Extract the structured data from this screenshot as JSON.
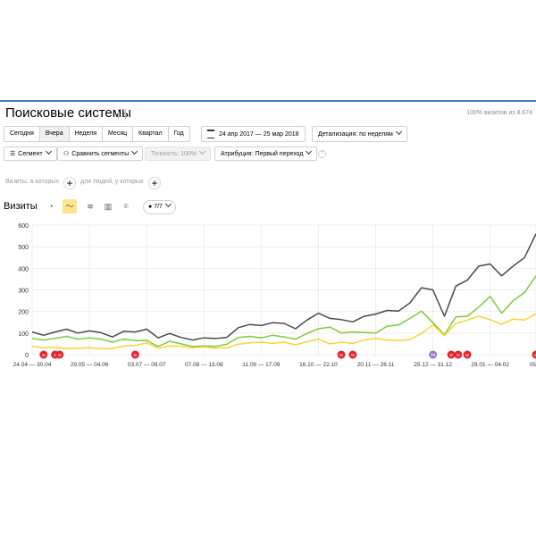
{
  "header": {
    "title": "Поисковые системы",
    "visits_note": "100% визитов из 8.674"
  },
  "period_tabs": [
    "Сегодня",
    "Вчера",
    "Неделя",
    "Месяц",
    "Квартал",
    "Год"
  ],
  "date_range": "24 апр 2017 — 25 мар 2018",
  "detail": "Детализация: по неделям",
  "toolbar": {
    "segment": "Сегмент",
    "compare": "Сравнить сегменты",
    "accuracy": "Точность: 100%",
    "attribution": "Атрибуция: Первый переход"
  },
  "conditions": {
    "visits_where": "Визиты, в которых",
    "for_people": "для людей, у которых"
  },
  "chart_header": {
    "title": "Визиты",
    "series_count": "7/7",
    "icons": [
      "pie-icon",
      "line-icon",
      "stacked-area-icon",
      "bar-icon",
      "map-icon"
    ]
  },
  "colors": {
    "series_dark": "#4a4a4a",
    "series_green": "#7ccd3a",
    "series_yellow": "#fcd233",
    "marker_red": "#e8222a",
    "marker_purple": "#8e7cc3",
    "grid": "#eeeeee",
    "accent_line": "#3d7fc4",
    "active_icon_bg": "#fde58a"
  },
  "chart_data": {
    "type": "line",
    "ylim": [
      0,
      600
    ],
    "yticks": [
      0,
      100,
      200,
      300,
      400,
      500,
      600
    ],
    "x_tick_labels": [
      "24.04 — 30.04",
      "29.05 — 04.06",
      "03.07 — 09.07",
      "07.08 — 13.08",
      "11.09 — 17.09",
      "16.10 — 22.10",
      "20.11 — 26.11",
      "25.12 — 31.12",
      "29.01 — 04.02",
      "05"
    ],
    "series": [
      {
        "values": [
          105,
          90,
          105,
          118,
          100,
          110,
          102,
          82,
          108,
          105,
          118,
          78,
          98,
          80,
          68,
          78,
          75,
          80,
          125,
          140,
          135,
          148,
          145,
          120,
          160,
          192,
          168,
          162,
          152,
          178,
          188,
          205,
          202,
          240,
          310,
          300,
          178,
          318,
          345,
          410,
          420,
          365,
          410,
          450,
          560
        ]
      },
      {
        "values": [
          75,
          68,
          75,
          85,
          72,
          78,
          72,
          58,
          72,
          65,
          66,
          38,
          62,
          50,
          38,
          40,
          38,
          48,
          80,
          85,
          78,
          90,
          82,
          72,
          98,
          120,
          128,
          100,
          105,
          102,
          100,
          132,
          138,
          168,
          202,
          148,
          92,
          175,
          178,
          220,
          270,
          192,
          250,
          288,
          365
        ]
      },
      {
        "values": [
          38,
          32,
          35,
          28,
          30,
          32,
          28,
          28,
          40,
          42,
          55,
          30,
          40,
          38,
          32,
          36,
          30,
          32,
          48,
          55,
          58,
          52,
          58,
          45,
          60,
          72,
          50,
          58,
          52,
          68,
          75,
          68,
          65,
          70,
          98,
          138,
          88,
          145,
          160,
          178,
          162,
          140,
          165,
          160,
          190
        ]
      }
    ],
    "markers": [
      {
        "index": 1,
        "label": "w",
        "kind": "red"
      },
      {
        "index": 2,
        "label": "s",
        "kind": "red"
      },
      {
        "index": 2.4,
        "label": "w",
        "kind": "red"
      },
      {
        "index": 9,
        "label": "w",
        "kind": "red"
      },
      {
        "index": 27,
        "label": "w",
        "kind": "red"
      },
      {
        "index": 28,
        "label": "w",
        "kind": "red"
      },
      {
        "index": 35,
        "label": "34",
        "kind": "purple"
      },
      {
        "index": 36.6,
        "label": "w",
        "kind": "red"
      },
      {
        "index": 37.2,
        "label": "w",
        "kind": "red"
      },
      {
        "index": 38,
        "label": "w",
        "kind": "red"
      },
      {
        "index": 44,
        "label": "w",
        "kind": "red"
      }
    ]
  }
}
